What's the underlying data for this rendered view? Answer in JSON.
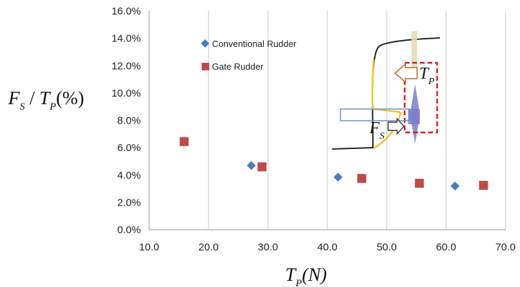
{
  "chart_data": {
    "type": "scatter",
    "xlim": [
      10,
      70
    ],
    "ylim": [
      0,
      16
    ],
    "x_ticks": [
      "10.0",
      "20.0",
      "30.0",
      "40.0",
      "50.0",
      "60.0",
      "70.0"
    ],
    "y_ticks": [
      "0.0%",
      "2.0%",
      "4.0%",
      "6.0%",
      "8.0%",
      "10.0%",
      "12.0%",
      "14.0%",
      "16.0%"
    ],
    "grid": "vertical",
    "legend_position": "top-left",
    "xlabel": {
      "var": "T",
      "sub": "P",
      "unit": "(N)"
    },
    "ylabel": {
      "num": "F",
      "num_sub": "S",
      "den": "T",
      "den_sub": "P",
      "unit": "(%)"
    },
    "series": [
      {
        "name": "Conventional Rudder",
        "marker": "diamond",
        "color": "#4a7ebb",
        "x": [
          27.2,
          41.8,
          61.5
        ],
        "y": [
          4.7,
          3.85,
          3.2
        ]
      },
      {
        "name": "Gate Rudder",
        "marker": "square",
        "color": "#be4b48",
        "x": [
          15.9,
          29.0,
          45.8,
          55.5,
          66.3
        ],
        "y": [
          6.45,
          4.6,
          3.75,
          3.4,
          3.25
        ]
      }
    ],
    "inset": {
      "fs_label": {
        "var": "F",
        "sub": "S"
      },
      "tp_label": {
        "var": "T",
        "sub": "P"
      }
    }
  },
  "colors": {
    "conventional": "#4a7ebb",
    "gate": "#be4b48",
    "inset_box": "#d42020",
    "inset_wake": "#f2c12e",
    "inset_hull": "#222222",
    "inset_arrow_blue": "#6a8fd0",
    "inset_propeller": "#7b7ec8"
  }
}
